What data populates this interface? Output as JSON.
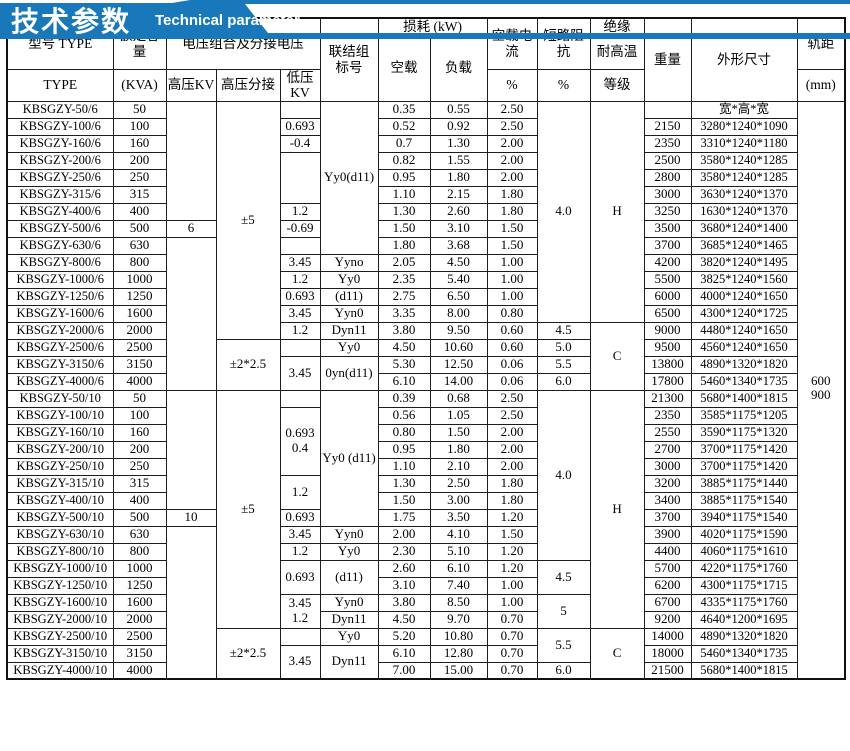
{
  "banner": {
    "title_zh": "技术参数",
    "title_en": "Technical parameter",
    "accent_color": "#1878b9"
  },
  "header": {
    "model": "型号 TYPE",
    "model_sub": "TYPE",
    "capacity": "额定容\n量",
    "capacity_sub": "(KVA)",
    "voltage_group": "电压组合及分接电压",
    "hv": "高压KV",
    "tap": "高压分接",
    "lv": "低压KV",
    "vector": "联结组\n标号",
    "loss": "损耗 (kW)",
    "no_load": "空载",
    "load": "负载",
    "current": "空载电\n流",
    "current_sub": "%",
    "impedance": "短路阻\n抗",
    "impedance_sub": "%",
    "insulation": "绝缘",
    "insulation2": "耐高温",
    "insulation_sub": "等级",
    "weight": "重量",
    "dims": "外形尺寸",
    "gauge": "轨距",
    "gauge_sub": "(mm)"
  },
  "segments": {
    "hv": [
      [
        7,
        ""
      ],
      [
        1,
        "6"
      ],
      [
        9,
        ""
      ],
      [
        7,
        ""
      ],
      [
        1,
        "10"
      ],
      [
        9,
        ""
      ]
    ],
    "tap": [
      [
        14,
        "±5"
      ],
      [
        3,
        "±2*2.5"
      ],
      [
        14,
        "±5"
      ],
      [
        3,
        "±2*2.5"
      ]
    ],
    "lv": [
      [
        1,
        ""
      ],
      [
        1,
        "0.693"
      ],
      [
        1,
        "-0.4"
      ],
      [
        3,
        ""
      ],
      [
        1,
        "1.2"
      ],
      [
        1,
        "-0.69"
      ],
      [
        1,
        ""
      ],
      [
        1,
        "3.45"
      ],
      [
        1,
        "1.2"
      ],
      [
        1,
        "0.693"
      ],
      [
        1,
        "3.45"
      ],
      [
        1,
        "1.2"
      ],
      [
        1,
        ""
      ],
      [
        2,
        "3.45"
      ],
      [
        1,
        ""
      ],
      [
        4,
        "0.693\n0.4"
      ],
      [
        2,
        "1.2"
      ],
      [
        1,
        "0.693"
      ],
      [
        1,
        "3.45"
      ],
      [
        1,
        "1.2"
      ],
      [
        2,
        "0.693"
      ],
      [
        2,
        "3.45\n1.2"
      ],
      [
        1,
        ""
      ],
      [
        2,
        "3.45"
      ]
    ],
    "vector": [
      [
        9,
        "Yy0(d11)"
      ],
      [
        1,
        "Yyno"
      ],
      [
        1,
        "Yy0"
      ],
      [
        1,
        "(d11)"
      ],
      [
        1,
        "Yyn0"
      ],
      [
        1,
        "Dyn11"
      ],
      [
        1,
        "Yy0"
      ],
      [
        2,
        "0yn(d11)"
      ],
      [
        8,
        "Yy0 (d11)"
      ],
      [
        1,
        "Yyn0"
      ],
      [
        1,
        "Yy0"
      ],
      [
        2,
        "(d11)"
      ],
      [
        1,
        "Yyn0"
      ],
      [
        1,
        "Dyn11"
      ],
      [
        1,
        "Yy0"
      ],
      [
        2,
        "Dyn11"
      ]
    ],
    "impedance": [
      [
        13,
        "4.0"
      ],
      [
        1,
        "4.5"
      ],
      [
        1,
        "5.0"
      ],
      [
        1,
        "5.5"
      ],
      [
        1,
        "6.0"
      ],
      [
        10,
        "4.0"
      ],
      [
        2,
        "4.5"
      ],
      [
        2,
        "5"
      ],
      [
        2,
        "5.5"
      ],
      [
        1,
        "6.0"
      ]
    ],
    "insulation": [
      [
        13,
        "H"
      ],
      [
        4,
        "C"
      ],
      [
        14,
        "H"
      ],
      [
        3,
        "C"
      ]
    ],
    "gauge": [
      [
        34,
        "600\n900"
      ]
    ]
  },
  "rows": [
    [
      "KBSGZY-50/6",
      "50",
      "0.35",
      "0.55",
      "2.50",
      "",
      "宽*高*宽"
    ],
    [
      "KBSGZY-100/6",
      "100",
      "0.52",
      "0.92",
      "2.50",
      "2150",
      "3280*1240*1090"
    ],
    [
      "KBSGZY-160/6",
      "160",
      "0.7",
      "1.30",
      "2.00",
      "2350",
      "3310*1240*1180"
    ],
    [
      "KBSGZY-200/6",
      "200",
      "0.82",
      "1.55",
      "2.00",
      "2500",
      "3580*1240*1285"
    ],
    [
      "KBSGZY-250/6",
      "250",
      "0.95",
      "1.80",
      "2.00",
      "2800",
      "3580*1240*1285"
    ],
    [
      "KBSGZY-315/6",
      "315",
      "1.10",
      "2.15",
      "1.80",
      "3000",
      "3630*1240*1370"
    ],
    [
      "KBSGZY-400/6",
      "400",
      "1.30",
      "2.60",
      "1.80",
      "3250",
      "1630*1240*1370"
    ],
    [
      "KBSGZY-500/6",
      "500",
      "1.50",
      "3.10",
      "1.50",
      "3500",
      "3680*1240*1400"
    ],
    [
      "KBSGZY-630/6",
      "630",
      "1.80",
      "3.68",
      "1.50",
      "3700",
      "3685*1240*1465"
    ],
    [
      "KBSGZY-800/6",
      "800",
      "2.05",
      "4.50",
      "1.00",
      "4200",
      "3820*1240*1495"
    ],
    [
      "KBSGZY-1000/6",
      "1000",
      "2.35",
      "5.40",
      "1.00",
      "5500",
      "3825*1240*1560"
    ],
    [
      "KBSGZY-1250/6",
      "1250",
      "2.75",
      "6.50",
      "1.00",
      "6000",
      "4000*1240*1650"
    ],
    [
      "KBSGZY-1600/6",
      "1600",
      "3.35",
      "8.00",
      "0.80",
      "6500",
      "4300*1240*1725"
    ],
    [
      "KBSGZY-2000/6",
      "2000",
      "3.80",
      "9.50",
      "0.60",
      "9000",
      "4480*1240*1650"
    ],
    [
      "KBSGZY-2500/6",
      "2500",
      "4.50",
      "10.60",
      "0.60",
      "9500",
      "4560*1240*1650"
    ],
    [
      "KBSGZY-3150/6",
      "3150",
      "5.30",
      "12.50",
      "0.06",
      "13800",
      "4890*1320*1820"
    ],
    [
      "KBSGZY-4000/6",
      "4000",
      "6.10",
      "14.00",
      "0.06",
      "17800",
      "5460*1340*1735"
    ],
    [
      "KBSGZY-50/10",
      "50",
      "0.39",
      "0.68",
      "2.50",
      "21300",
      "5680*1400*1815"
    ],
    [
      "KBSGZY-100/10",
      "100",
      "0.56",
      "1.05",
      "2.50",
      "2350",
      "3585*1175*1205"
    ],
    [
      "KBSGZY-160/10",
      "160",
      "0.80",
      "1.50",
      "2.00",
      "2550",
      "3590*1175*1320"
    ],
    [
      "KBSGZY-200/10",
      "200",
      "0.95",
      "1.80",
      "2.00",
      "2700",
      "3700*1175*1420"
    ],
    [
      "KBSGZY-250/10",
      "250",
      "1.10",
      "2.10",
      "2.00",
      "3000",
      "3700*1175*1420"
    ],
    [
      "KBSGZY-315/10",
      "315",
      "1.30",
      "2.50",
      "1.80",
      "3200",
      "3885*1175*1440"
    ],
    [
      "KBSGZY-400/10",
      "400",
      "1.50",
      "3.00",
      "1.80",
      "3400",
      "3885*1175*1540"
    ],
    [
      "KBSGZY-500/10",
      "500",
      "1.75",
      "3.50",
      "1.20",
      "3700",
      "3940*1175*1540"
    ],
    [
      "KBSGZY-630/10",
      "630",
      "2.00",
      "4.10",
      "1.50",
      "3900",
      "4020*1175*1590"
    ],
    [
      "KBSGZY-800/10",
      "800",
      "2.30",
      "5.10",
      "1.20",
      "4400",
      "4060*1175*1610"
    ],
    [
      "KBSGZY-1000/10",
      "1000",
      "2.60",
      "6.10",
      "1.20",
      "5700",
      "4220*1175*1760"
    ],
    [
      "KBSGZY-1250/10",
      "1250",
      "3.10",
      "7.40",
      "1.00",
      "6200",
      "4300*1175*1715"
    ],
    [
      "KBSGZY-1600/10",
      "1600",
      "3.80",
      "8.50",
      "1.00",
      "6700",
      "4335*1175*1760"
    ],
    [
      "KBSGZY-2000/10",
      "2000",
      "4.50",
      "9.70",
      "0.70",
      "9200",
      "4640*1200*1695"
    ],
    [
      "KBSGZY-2500/10",
      "2500",
      "5.20",
      "10.80",
      "0.70",
      "14000",
      "4890*1320*1820"
    ],
    [
      "KBSGZY-3150/10",
      "3150",
      "6.10",
      "12.80",
      "0.70",
      "18000",
      "5460*1340*1735"
    ],
    [
      "KBSGZY-4000/10",
      "4000",
      "7.00",
      "15.00",
      "0.70",
      "21500",
      "5680*1400*1815"
    ]
  ]
}
